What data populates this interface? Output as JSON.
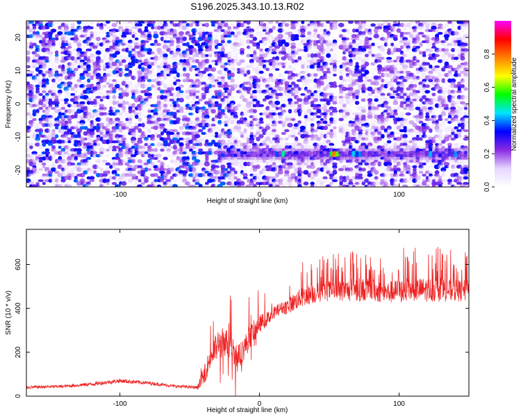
{
  "title": "S196.2025.343.10.13.R02",
  "chart_data": [
    {
      "type": "heatmap",
      "xlabel": "Height of straight line (km)",
      "ylabel": "Frequency (Hz)",
      "xlim": [
        -167,
        150
      ],
      "ylim": [
        -25,
        25
      ],
      "xticks": [
        -100,
        0,
        100
      ],
      "yticks": [
        -20,
        -10,
        0,
        10,
        20
      ],
      "grid": false,
      "colorbar": {
        "label": "Normalized spectral amplitude",
        "range": [
          0,
          1
        ],
        "ticks": [
          "0.0",
          "0.2",
          "0.4",
          "0.6",
          "0.8"
        ],
        "colors": [
          "#ffffff",
          "#e6d6ff",
          "#8a2be2",
          "#0000ff",
          "#00e5ff",
          "#00ff00",
          "#ffff00",
          "#ff8000",
          "#ff0000",
          "#ff00ff"
        ]
      },
      "features": [
        {
          "kind": "band",
          "label": "",
          "y": -15,
          "x_range": [
            -30,
            150
          ],
          "amplitude": 0.3
        },
        {
          "kind": "peak",
          "x": 14,
          "y": -15,
          "amplitude": 0.45
        },
        {
          "kind": "peak",
          "x": 18,
          "y": -15,
          "amplitude": 0.55
        },
        {
          "kind": "peak",
          "x": 52,
          "y": -15,
          "amplitude": 0.6
        },
        {
          "kind": "peak",
          "x": 54,
          "y": -15,
          "amplitude": 0.95
        },
        {
          "kind": "peak",
          "x": 56,
          "y": -15,
          "amplitude": 0.8
        },
        {
          "kind": "peak",
          "x": 68,
          "y": -15,
          "amplitude": 0.5
        },
        {
          "kind": "peak",
          "x": 72,
          "y": -15,
          "amplitude": 0.55
        },
        {
          "kind": "peak",
          "x": 123,
          "y": -15,
          "amplitude": 0.5
        },
        {
          "kind": "peak",
          "x": 142,
          "y": -15,
          "amplitude": 0.45
        },
        {
          "kind": "peak",
          "x": -88,
          "y": -13,
          "amplitude": 0.4
        }
      ],
      "gap_x_range": [
        56,
        59
      ]
    },
    {
      "type": "line",
      "xlabel": "Height of straight line (km)",
      "ylabel": "SNR (10 * v/v)",
      "xlim": [
        -167,
        150
      ],
      "ylim": [
        0,
        760
      ],
      "xticks": [
        -100,
        0,
        100
      ],
      "yticks": [
        0,
        200,
        400,
        600
      ],
      "grid": false,
      "series": [
        {
          "name": "",
          "color": "#ee2222",
          "x": [
            -167,
            -140,
            -120,
            -100,
            -80,
            -60,
            -45,
            -40,
            -35,
            -30,
            -25,
            -20,
            -15,
            -10,
            -5,
            0,
            5,
            10,
            15,
            20,
            25,
            30,
            40,
            50,
            60,
            70,
            80,
            90,
            100,
            110,
            120,
            130,
            140,
            150
          ],
          "y": [
            40,
            45,
            55,
            70,
            60,
            45,
            40,
            90,
            180,
            230,
            250,
            220,
            180,
            230,
            290,
            330,
            350,
            380,
            400,
            410,
            430,
            450,
            470,
            480,
            480,
            485,
            485,
            470,
            480,
            485,
            485,
            485,
            480,
            480
          ],
          "spike_amplitude": [
            25,
            25,
            30,
            35,
            30,
            25,
            25,
            150,
            200,
            260,
            250,
            240,
            200,
            200,
            180,
            150,
            120,
            110,
            100,
            130,
            150,
            160,
            170,
            170,
            180,
            200,
            180,
            180,
            200,
            190,
            200,
            200,
            180,
            180
          ]
        }
      ]
    }
  ]
}
